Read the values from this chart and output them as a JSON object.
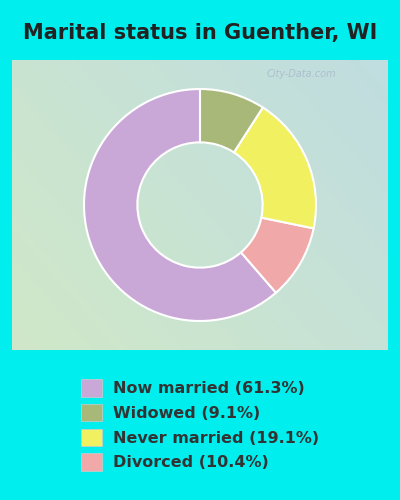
{
  "title": "Marital status in Guenther, WI",
  "title_color": "#222222",
  "title_fontsize": 15,
  "cyan_bg": "#00EEEE",
  "slices": [
    61.3,
    10.4,
    19.1,
    9.1
  ],
  "colors": [
    "#c9a8d8",
    "#f0a8a8",
    "#f0f060",
    "#a8b878"
  ],
  "labels": [
    "Now married (61.3%)",
    "Widowed (9.1%)",
    "Never married (19.1%)",
    "Divorced (10.4%)"
  ],
  "legend_colors": [
    "#c9a8d8",
    "#a8b878",
    "#f0f060",
    "#f0a8a8"
  ],
  "legend_text_color": "#333333",
  "legend_fontsize": 11.5,
  "watermark": "City-Data.com",
  "startangle": 90,
  "chart_bg_left": "#d0e8c8",
  "chart_bg_right": "#c0dde0"
}
